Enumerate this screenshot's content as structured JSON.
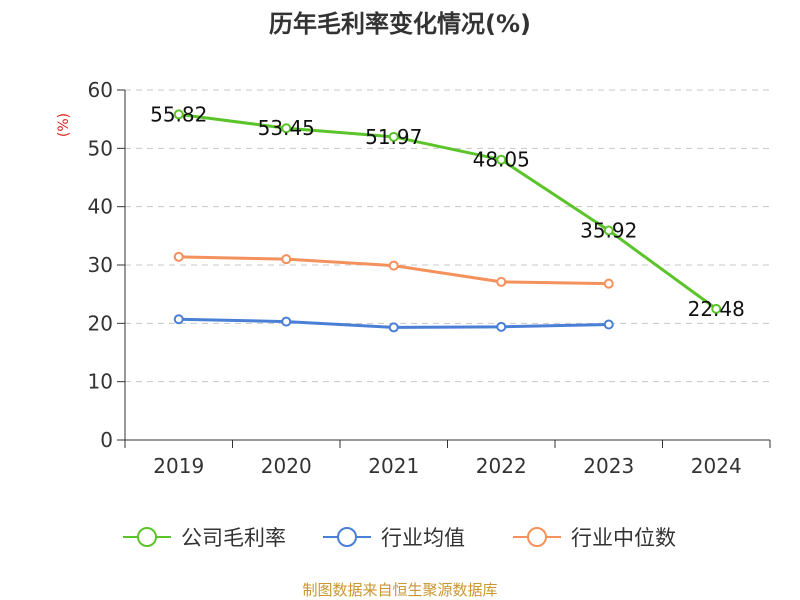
{
  "colors": {
    "company": "#5cc42b",
    "industry_avg": "#4a7fd6",
    "industry_median": "#f4915c",
    "ylabel": "#e02020",
    "source": "#c9962f",
    "grid": "#c8c8c8",
    "axis": "#333333"
  },
  "source_text": "制图数据来自恒生聚源数据库",
  "chart_data": {
    "type": "line",
    "title": "历年毛利率变化情况(%)",
    "ylabel": "(%)",
    "xlabel": "",
    "categories": [
      "2019",
      "2020",
      "2021",
      "2022",
      "2023",
      "2024"
    ],
    "ylim": [
      0,
      60
    ],
    "yticks": [
      "0",
      "10",
      "20",
      "30",
      "40",
      "50",
      "60"
    ],
    "grid": "horizontal dashed",
    "legend_position": "bottom",
    "series": [
      {
        "name": "公司毛利率",
        "color_key": "company",
        "values": [
          55.82,
          53.45,
          51.97,
          48.05,
          35.92,
          22.48
        ],
        "labels": [
          "55.82",
          "53.45",
          "51.97",
          "48.05",
          "35.92",
          "22.48"
        ]
      },
      {
        "name": "行业均值",
        "color_key": "industry_avg",
        "values": [
          20.7,
          20.3,
          19.3,
          19.4,
          19.8,
          null
        ]
      },
      {
        "name": "行业中位数",
        "color_key": "industry_median",
        "values": [
          31.4,
          31.0,
          29.9,
          27.1,
          26.8,
          null
        ]
      }
    ]
  }
}
